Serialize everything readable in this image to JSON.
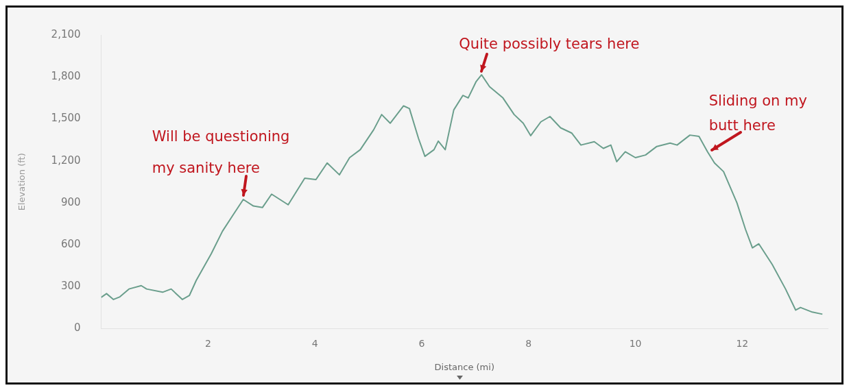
{
  "chart_data": {
    "type": "line",
    "xlabel": "Distance (mi)",
    "ylabel": "Elevation (ft)",
    "xlim": [
      0,
      13.6
    ],
    "xticks": [
      2,
      4,
      6,
      8,
      10,
      12
    ],
    "ylim": [
      0,
      2100
    ],
    "yticks": [
      0,
      300,
      600,
      900,
      {
        "value": 1200,
        "label": "1,200"
      },
      {
        "value": 1500,
        "label": "1,500"
      },
      {
        "value": 1800,
        "label": "1,800"
      },
      {
        "value": 2100,
        "label": "2,100"
      }
    ],
    "grid": false,
    "legend": false,
    "marker": "none",
    "line_style": "solid",
    "series": [
      {
        "color": "#6a9e8c",
        "x": [
          0,
          0.1,
          0.23,
          0.35,
          0.52,
          0.75,
          0.85,
          1.15,
          1.31,
          1.52,
          1.65,
          1.78,
          2.06,
          2.27,
          2.48,
          2.66,
          2.85,
          3.02,
          3.19,
          3.5,
          3.81,
          4.02,
          4.23,
          4.46,
          4.65,
          4.85,
          5.1,
          5.25,
          5.41,
          5.66,
          5.77,
          5.94,
          6.06,
          6.23,
          6.31,
          6.44,
          6.6,
          6.77,
          6.87,
          7.02,
          7.12,
          7.27,
          7.52,
          7.73,
          7.9,
          8.04,
          8.23,
          8.4,
          8.6,
          8.81,
          8.98,
          9.23,
          9.4,
          9.54,
          9.65,
          9.81,
          10.0,
          10.19,
          10.4,
          10.65,
          10.78,
          11.02,
          11.19,
          11.35,
          11.48,
          11.65,
          11.9,
          12.06,
          12.19,
          12.31,
          12.56,
          12.81,
          13.0,
          13.09,
          13.31,
          13.5
        ],
        "values": [
          224,
          251,
          209,
          228,
          284,
          308,
          284,
          261,
          284,
          209,
          237,
          346,
          536,
          697,
          820,
          924,
          877,
          867,
          962,
          886,
          1076,
          1066,
          1185,
          1100,
          1223,
          1280,
          1422,
          1531,
          1469,
          1593,
          1574,
          1360,
          1232,
          1280,
          1341,
          1280,
          1564,
          1668,
          1650,
          1768,
          1815,
          1730,
          1650,
          1531,
          1469,
          1380,
          1479,
          1517,
          1436,
          1398,
          1313,
          1337,
          1289,
          1313,
          1194,
          1265,
          1223,
          1242,
          1303,
          1327,
          1313,
          1384,
          1375,
          1265,
          1185,
          1123,
          900,
          711,
          578,
          607,
          460,
          284,
          133,
          152,
          119,
          104
        ]
      }
    ],
    "annotations": [
      {
        "text": "Will be questioning my sanity here",
        "x": 2.66,
        "y": 924
      },
      {
        "text": "Quite possibly tears here",
        "x": 7.12,
        "y": 1815
      },
      {
        "text": "Sliding on my butt here",
        "x": 11.35,
        "y": 1265
      }
    ]
  }
}
